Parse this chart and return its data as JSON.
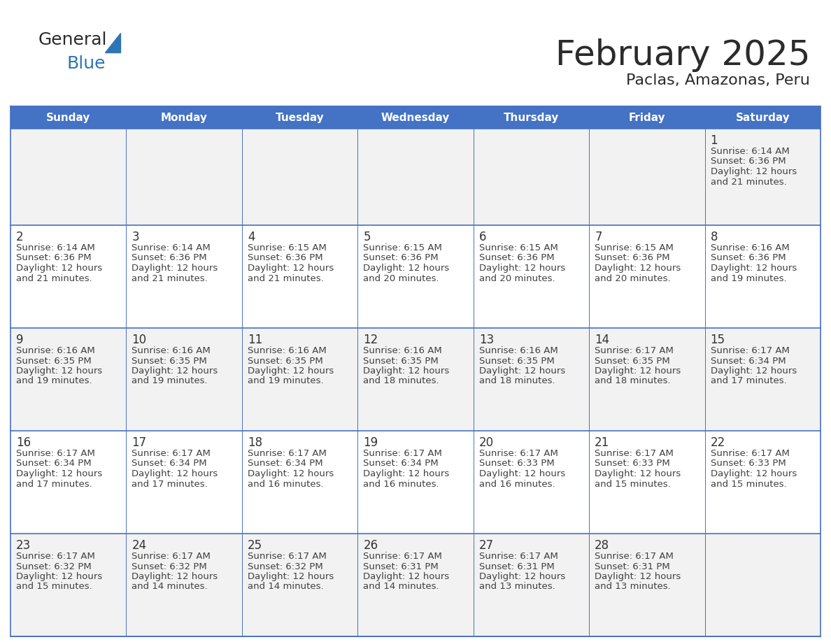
{
  "title": "February 2025",
  "subtitle": "Paclas, Amazonas, Peru",
  "days_of_week": [
    "Sunday",
    "Monday",
    "Tuesday",
    "Wednesday",
    "Thursday",
    "Friday",
    "Saturday"
  ],
  "header_bg": "#4472C4",
  "header_text": "#FFFFFF",
  "row_bg_odd": "#F2F2F2",
  "row_bg_even": "#FFFFFF",
  "text_color": "#404040",
  "day_number_color": "#333333",
  "border_color": "#4472C4",
  "line_color": "#4472C4",
  "calendar_data": [
    [
      null,
      null,
      null,
      null,
      null,
      null,
      {
        "day": 1,
        "sunrise": "6:14 AM",
        "sunset": "6:36 PM",
        "daylight": "12 hours",
        "daylight2": "and 21 minutes."
      }
    ],
    [
      {
        "day": 2,
        "sunrise": "6:14 AM",
        "sunset": "6:36 PM",
        "daylight": "12 hours",
        "daylight2": "and 21 minutes."
      },
      {
        "day": 3,
        "sunrise": "6:14 AM",
        "sunset": "6:36 PM",
        "daylight": "12 hours",
        "daylight2": "and 21 minutes."
      },
      {
        "day": 4,
        "sunrise": "6:15 AM",
        "sunset": "6:36 PM",
        "daylight": "12 hours",
        "daylight2": "and 21 minutes."
      },
      {
        "day": 5,
        "sunrise": "6:15 AM",
        "sunset": "6:36 PM",
        "daylight": "12 hours",
        "daylight2": "and 20 minutes."
      },
      {
        "day": 6,
        "sunrise": "6:15 AM",
        "sunset": "6:36 PM",
        "daylight": "12 hours",
        "daylight2": "and 20 minutes."
      },
      {
        "day": 7,
        "sunrise": "6:15 AM",
        "sunset": "6:36 PM",
        "daylight": "12 hours",
        "daylight2": "and 20 minutes."
      },
      {
        "day": 8,
        "sunrise": "6:16 AM",
        "sunset": "6:36 PM",
        "daylight": "12 hours",
        "daylight2": "and 19 minutes."
      }
    ],
    [
      {
        "day": 9,
        "sunrise": "6:16 AM",
        "sunset": "6:35 PM",
        "daylight": "12 hours",
        "daylight2": "and 19 minutes."
      },
      {
        "day": 10,
        "sunrise": "6:16 AM",
        "sunset": "6:35 PM",
        "daylight": "12 hours",
        "daylight2": "and 19 minutes."
      },
      {
        "day": 11,
        "sunrise": "6:16 AM",
        "sunset": "6:35 PM",
        "daylight": "12 hours",
        "daylight2": "and 19 minutes."
      },
      {
        "day": 12,
        "sunrise": "6:16 AM",
        "sunset": "6:35 PM",
        "daylight": "12 hours",
        "daylight2": "and 18 minutes."
      },
      {
        "day": 13,
        "sunrise": "6:16 AM",
        "sunset": "6:35 PM",
        "daylight": "12 hours",
        "daylight2": "and 18 minutes."
      },
      {
        "day": 14,
        "sunrise": "6:17 AM",
        "sunset": "6:35 PM",
        "daylight": "12 hours",
        "daylight2": "and 18 minutes."
      },
      {
        "day": 15,
        "sunrise": "6:17 AM",
        "sunset": "6:34 PM",
        "daylight": "12 hours",
        "daylight2": "and 17 minutes."
      }
    ],
    [
      {
        "day": 16,
        "sunrise": "6:17 AM",
        "sunset": "6:34 PM",
        "daylight": "12 hours",
        "daylight2": "and 17 minutes."
      },
      {
        "day": 17,
        "sunrise": "6:17 AM",
        "sunset": "6:34 PM",
        "daylight": "12 hours",
        "daylight2": "and 17 minutes."
      },
      {
        "day": 18,
        "sunrise": "6:17 AM",
        "sunset": "6:34 PM",
        "daylight": "12 hours",
        "daylight2": "and 16 minutes."
      },
      {
        "day": 19,
        "sunrise": "6:17 AM",
        "sunset": "6:34 PM",
        "daylight": "12 hours",
        "daylight2": "and 16 minutes."
      },
      {
        "day": 20,
        "sunrise": "6:17 AM",
        "sunset": "6:33 PM",
        "daylight": "12 hours",
        "daylight2": "and 16 minutes."
      },
      {
        "day": 21,
        "sunrise": "6:17 AM",
        "sunset": "6:33 PM",
        "daylight": "12 hours",
        "daylight2": "and 15 minutes."
      },
      {
        "day": 22,
        "sunrise": "6:17 AM",
        "sunset": "6:33 PM",
        "daylight": "12 hours",
        "daylight2": "and 15 minutes."
      }
    ],
    [
      {
        "day": 23,
        "sunrise": "6:17 AM",
        "sunset": "6:32 PM",
        "daylight": "12 hours",
        "daylight2": "and 15 minutes."
      },
      {
        "day": 24,
        "sunrise": "6:17 AM",
        "sunset": "6:32 PM",
        "daylight": "12 hours",
        "daylight2": "and 14 minutes."
      },
      {
        "day": 25,
        "sunrise": "6:17 AM",
        "sunset": "6:32 PM",
        "daylight": "12 hours",
        "daylight2": "and 14 minutes."
      },
      {
        "day": 26,
        "sunrise": "6:17 AM",
        "sunset": "6:31 PM",
        "daylight": "12 hours",
        "daylight2": "and 14 minutes."
      },
      {
        "day": 27,
        "sunrise": "6:17 AM",
        "sunset": "6:31 PM",
        "daylight": "12 hours",
        "daylight2": "and 13 minutes."
      },
      {
        "day": 28,
        "sunrise": "6:17 AM",
        "sunset": "6:31 PM",
        "daylight": "12 hours",
        "daylight2": "and 13 minutes."
      },
      null
    ]
  ]
}
